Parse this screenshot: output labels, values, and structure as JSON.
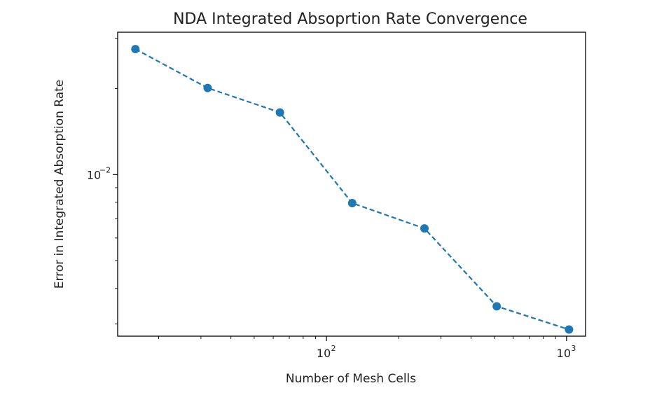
{
  "chart_data": {
    "type": "line",
    "title": "NDA Integrated Absoprtion Rate Convergence",
    "xlabel": "Number of Mesh Cells",
    "ylabel": "Error in Integrated Absorption Rate",
    "x_scale": "log",
    "y_scale": "log",
    "xlim": [
      13.5,
      1200
    ],
    "ylim": [
      0.00272,
      0.0315
    ],
    "x_ticks": [
      {
        "value": 100,
        "base": "10",
        "exp": "2"
      },
      {
        "value": 1000,
        "base": "10",
        "exp": "3"
      }
    ],
    "y_ticks": [
      {
        "value": 0.01,
        "base": "10",
        "exp": "−2"
      }
    ],
    "grid": false,
    "legend": "none",
    "series": [
      {
        "color": "#1f77b4",
        "line_style": "dashed",
        "marker": "circle",
        "x": [
          16,
          32,
          64,
          128,
          256,
          512,
          1024
        ],
        "y": [
          0.0275,
          0.0201,
          0.0165,
          0.00795,
          0.00648,
          0.00346,
          0.00287
        ]
      }
    ]
  }
}
